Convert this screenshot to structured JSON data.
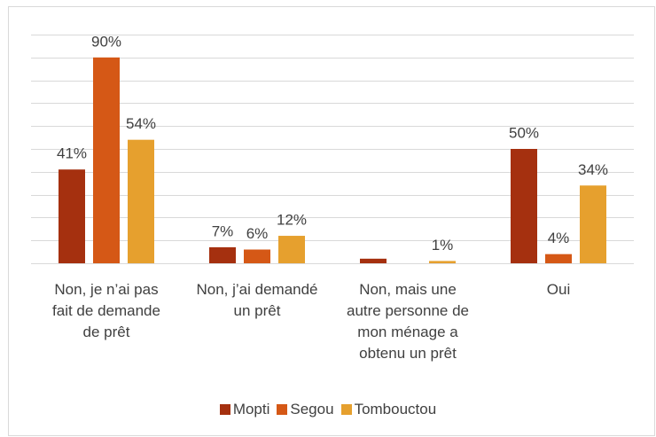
{
  "chart_data": {
    "type": "bar",
    "categories": [
      "Non, je n’ai pas fait de demande de prêt",
      "Non, j’ai demandé un prêt",
      "Non, mais une autre personne de mon ménage a obtenu un prêt",
      "Oui"
    ],
    "series": [
      {
        "name": "Mopti",
        "color": "#a5300f",
        "values": [
          41,
          7,
          2,
          50
        ],
        "value_labels": [
          "41%",
          "7%",
          null,
          "50%"
        ]
      },
      {
        "name": "Segou",
        "color": "#d55816",
        "values": [
          90,
          6,
          0,
          4
        ],
        "value_labels": [
          "90%",
          "6%",
          null,
          "4%"
        ]
      },
      {
        "name": "Tombouctou",
        "color": "#e6a02e",
        "values": [
          54,
          12,
          1,
          34
        ],
        "value_labels": [
          "54%",
          "12%",
          "1%",
          "34%"
        ]
      }
    ],
    "ylim": [
      0,
      100
    ],
    "yticks": [
      0,
      10,
      20,
      30,
      40,
      50,
      60,
      70,
      80,
      90,
      100
    ],
    "grid": true,
    "legend": "bottom"
  }
}
